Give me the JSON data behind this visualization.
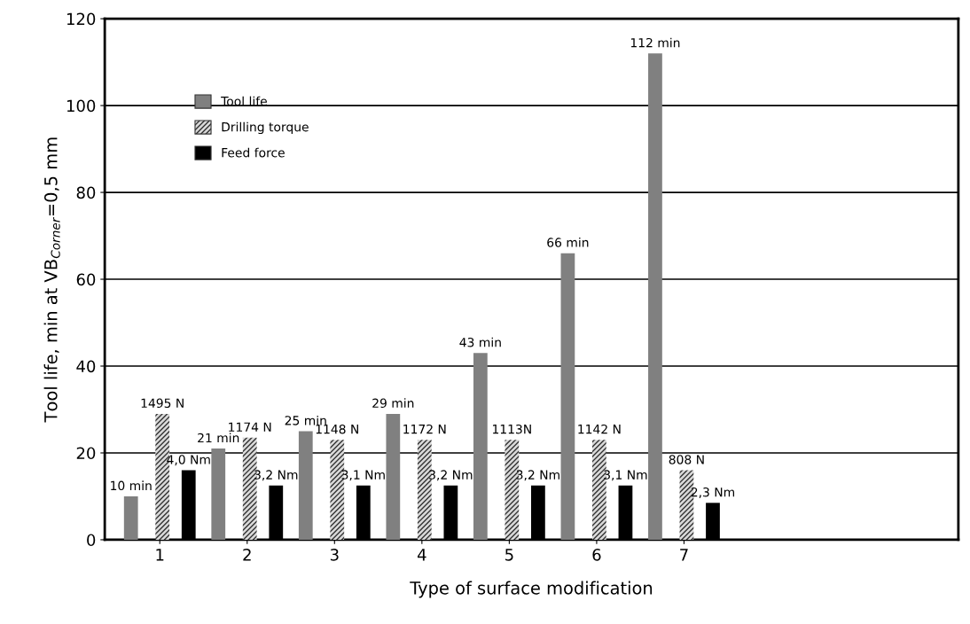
{
  "chart_data": {
    "type": "bar",
    "xlabel": "Type of surface modification",
    "ylabel": "Tool life, min at VB$_{Corner}$=0,5 mm",
    "categories": [
      "1",
      "2",
      "3",
      "4",
      "5",
      "6",
      "7"
    ],
    "series": [
      {
        "name": "Tool life",
        "color": "#808080",
        "values": [
          10,
          21,
          25,
          29,
          43,
          66,
          112
        ],
        "value_labels": [
          "10 min",
          "21 min",
          "25 min",
          "29 min",
          "43 min",
          "66 min",
          "112 min"
        ]
      },
      {
        "name": "Drilling torque",
        "color": "#d9d9d9",
        "values": [
          29,
          23.5,
          23,
          23,
          23,
          23,
          16
        ]
      },
      {
        "name": "Feed force",
        "color": "#000000",
        "values": [
          16,
          12.5,
          12.5,
          12.5,
          12.5,
          12.5,
          8.5
        ]
      }
    ],
    "annotations": [
      {
        "text": "1495 N",
        "x": "1",
        "y": 29
      },
      {
        "text": "1174 N",
        "x": "2",
        "y": 23.5
      },
      {
        "text": "1148 N",
        "x": "3",
        "y": 23
      },
      {
        "text": "1172 N",
        "x": "4",
        "y": 23
      },
      {
        "text": "1113N",
        "x": "5",
        "y": 23
      },
      {
        "text": "1142 N",
        "x": "6",
        "y": 23
      },
      {
        "text": "808 N",
        "x": "7",
        "y": 16
      },
      {
        "text": "4,0 Nm",
        "x": "1",
        "y": 16
      },
      {
        "text": "3,2 Nm",
        "x": "2",
        "y": 12.5
      },
      {
        "text": "3,1 Nm",
        "x": "3",
        "y": 12.5
      },
      {
        "text": "3,2 Nm",
        "x": "4",
        "y": 12.5
      },
      {
        "text": "3,2 Nm",
        "x": "5",
        "y": 12.5
      },
      {
        "text": "3,1 Nm",
        "x": "6",
        "y": 12.5
      },
      {
        "text": "2,3 Nm",
        "x": "7",
        "y": 8.5
      }
    ],
    "ylim": [
      0,
      120
    ],
    "yticks": [
      0,
      20,
      40,
      60,
      80,
      100,
      120
    ],
    "grid": "y",
    "legend": "top left"
  }
}
